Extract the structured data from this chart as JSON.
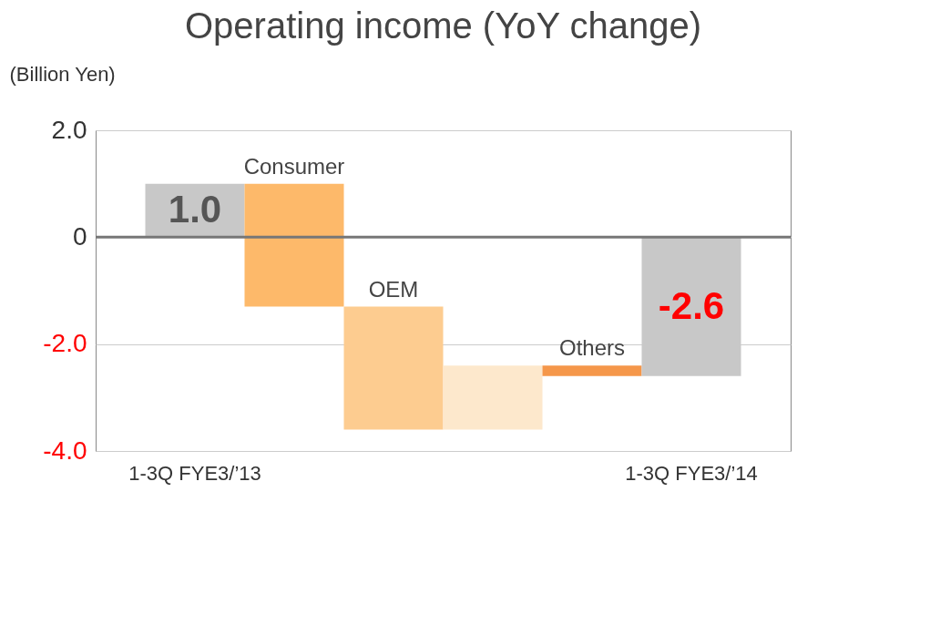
{
  "chart_data": {
    "type": "bar",
    "title": "Operating income (YoY change)",
    "ylabel": "(Billion Yen)",
    "categories": [
      "1-3Q FYE3/’13",
      "Consumer",
      "OEM",
      null,
      "Others",
      "1-3Q FYE3/’14"
    ],
    "values": [
      1.0,
      -2.3,
      -2.3,
      1.2,
      -0.2,
      -2.6
    ],
    "base": [
      0,
      1.0,
      -1.3,
      -3.6,
      -2.4,
      0
    ],
    "colors": [
      "#c8c8c8",
      "#fdb96a",
      "#fdcc90",
      "#fde8cc",
      "#f5974a",
      "#c8c8c8"
    ],
    "value_labels": [
      "1.0",
      null,
      null,
      null,
      null,
      "-2.6"
    ],
    "ylim": [
      -4,
      2
    ],
    "yticks": [
      {
        "value": 2,
        "label": "2.0"
      },
      0,
      {
        "value": -2,
        "label": "-2.0"
      },
      {
        "value": -4,
        "label": "-4.0"
      }
    ],
    "ref_lines": [
      {
        "axis": "y",
        "value": 0,
        "color": "#777777"
      }
    ],
    "grid": "y"
  }
}
